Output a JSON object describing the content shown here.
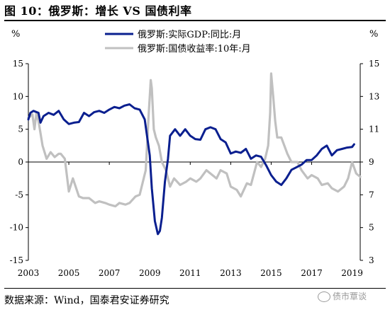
{
  "figure": {
    "title": "图 10：俄罗斯：增长 VS 国债利率",
    "left_unit": "%",
    "right_unit": "%",
    "source": "数据来源：Wind，国泰君安证券研究",
    "watermark": "债市覃谈"
  },
  "chart_data": {
    "type": "line",
    "legend_position": "top-center",
    "grid": false,
    "x_axis": {
      "range": [
        2003.0,
        2019.4
      ],
      "ticks": [
        "2003",
        "2005",
        "2007",
        "2009",
        "2011",
        "2013",
        "2015",
        "2017",
        "2019"
      ]
    },
    "y_left": {
      "range": [
        -15,
        15
      ],
      "ticks": [
        "15",
        "10",
        "5",
        "0",
        "-5",
        "-10",
        "-15"
      ]
    },
    "y_right": {
      "range": [
        3,
        15
      ],
      "ticks": [
        "15",
        "13",
        "11",
        "9",
        "7",
        "5",
        "3"
      ]
    },
    "series": [
      {
        "name": "俄罗斯:实际GDP:同比:月",
        "axis": "left",
        "color": "#0a1f8f",
        "x": [
          2003.0,
          2003.1,
          2003.25,
          2003.5,
          2003.6,
          2003.75,
          2004.0,
          2004.25,
          2004.5,
          2004.75,
          2005.0,
          2005.25,
          2005.5,
          2005.75,
          2006.0,
          2006.25,
          2006.5,
          2006.75,
          2007.0,
          2007.25,
          2007.5,
          2007.75,
          2008.0,
          2008.25,
          2008.5,
          2008.75,
          2009.0,
          2009.1,
          2009.25,
          2009.4,
          2009.5,
          2009.6,
          2009.75,
          2009.9,
          2010.0,
          2010.25,
          2010.5,
          2010.75,
          2011.0,
          2011.25,
          2011.5,
          2011.75,
          2012.0,
          2012.25,
          2012.5,
          2012.75,
          2013.0,
          2013.25,
          2013.5,
          2013.75,
          2014.0,
          2014.25,
          2014.5,
          2014.75,
          2015.0,
          2015.25,
          2015.5,
          2015.75,
          2016.0,
          2016.25,
          2016.5,
          2016.75,
          2017.0,
          2017.25,
          2017.5,
          2017.75,
          2018.0,
          2018.25,
          2018.5,
          2018.75,
          2019.0,
          2019.1
        ],
        "values": [
          6.5,
          7.5,
          7.8,
          7.5,
          6.0,
          7.0,
          7.5,
          7.2,
          7.8,
          6.5,
          5.8,
          6.0,
          6.1,
          7.5,
          7.0,
          7.6,
          7.8,
          7.5,
          8.0,
          8.4,
          8.2,
          8.6,
          8.8,
          8.2,
          8.0,
          6.5,
          1.0,
          -4.0,
          -9.0,
          -11.0,
          -10.5,
          -8.5,
          -3.0,
          0.5,
          4.0,
          5.0,
          4.0,
          5.0,
          4.0,
          3.5,
          3.4,
          5.0,
          5.3,
          5.0,
          3.5,
          3.0,
          1.3,
          1.6,
          1.4,
          2.0,
          0.5,
          1.0,
          0.8,
          -0.5,
          -2.0,
          -3.0,
          -3.5,
          -2.5,
          -1.2,
          -0.8,
          -0.4,
          0.3,
          0.3,
          1.0,
          2.0,
          2.5,
          1.0,
          1.8,
          2.0,
          2.2,
          2.3,
          2.7
        ]
      },
      {
        "name": "俄罗斯:国债收益率:10年:月",
        "axis": "right",
        "color": "#c0c0c0",
        "x": [
          2003.0,
          2003.2,
          2003.3,
          2003.4,
          2003.5,
          2003.7,
          2003.9,
          2004.1,
          2004.3,
          2004.5,
          2004.6,
          2004.8,
          2005.0,
          2005.2,
          2005.5,
          2005.7,
          2006.0,
          2006.3,
          2006.5,
          2006.8,
          2007.0,
          2007.3,
          2007.5,
          2007.8,
          2008.0,
          2008.3,
          2008.5,
          2008.8,
          2008.95,
          2009.05,
          2009.1,
          2009.2,
          2009.3,
          2009.45,
          2009.6,
          2009.8,
          2010.0,
          2010.2,
          2010.5,
          2010.8,
          2011.0,
          2011.3,
          2011.5,
          2011.8,
          2012.0,
          2012.3,
          2012.5,
          2012.8,
          2013.0,
          2013.3,
          2013.5,
          2013.8,
          2014.0,
          2014.3,
          2014.5,
          2014.7,
          2014.85,
          2014.95,
          2015.0,
          2015.1,
          2015.2,
          2015.3,
          2015.5,
          2015.8,
          2016.0,
          2016.3,
          2016.5,
          2016.8,
          2017.0,
          2017.3,
          2017.5,
          2017.8,
          2018.0,
          2018.3,
          2018.6,
          2018.8,
          2019.0,
          2019.2,
          2019.4
        ],
        "values": [
          11.7,
          11.9,
          11.0,
          12.0,
          11.5,
          10.0,
          9.2,
          9.6,
          9.3,
          9.5,
          9.5,
          9.2,
          7.2,
          8.0,
          6.9,
          6.8,
          6.8,
          6.5,
          6.6,
          6.5,
          6.4,
          6.3,
          6.5,
          6.4,
          6.5,
          6.9,
          7.0,
          8.5,
          12.0,
          14.0,
          13.5,
          11.0,
          10.5,
          10.0,
          9.0,
          8.5,
          7.5,
          8.0,
          7.6,
          7.8,
          8.0,
          7.8,
          8.0,
          8.5,
          8.3,
          8.0,
          8.5,
          8.3,
          7.5,
          7.3,
          6.9,
          7.7,
          7.6,
          9.0,
          8.7,
          9.2,
          10.0,
          12.0,
          14.4,
          13.0,
          11.5,
          10.5,
          10.5,
          9.5,
          9.0,
          9.0,
          8.5,
          8.0,
          8.2,
          8.0,
          7.6,
          7.7,
          7.4,
          7.2,
          7.5,
          8.0,
          9.0,
          8.3,
          8.1
        ]
      }
    ]
  }
}
